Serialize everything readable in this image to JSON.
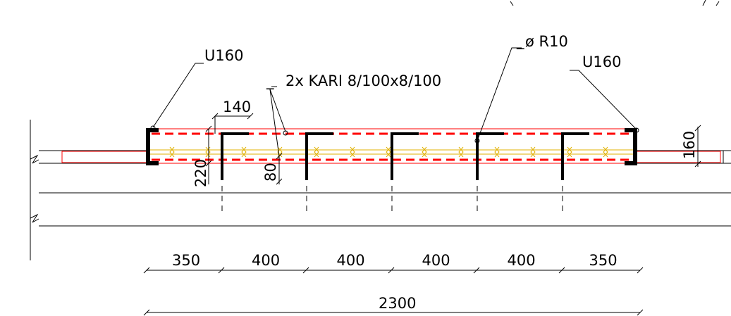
{
  "labels": {
    "left_channel": "U160",
    "right_channel": "U160",
    "mesh": "2x KARI 8/100x8/100",
    "anchor": "ø R10",
    "spacing_top": "140",
    "slab_thickness": "220",
    "cover": "80",
    "right_height": "160",
    "mesh_marker": "_",
    "anchor_marker": "_"
  },
  "dimensions": {
    "segments": [
      "350",
      "400",
      "400",
      "400",
      "400",
      "350"
    ],
    "total": "2300"
  },
  "colors": {
    "line": "#000000",
    "rebar_outline": "#ff0000",
    "mesh": "#e0b000"
  }
}
